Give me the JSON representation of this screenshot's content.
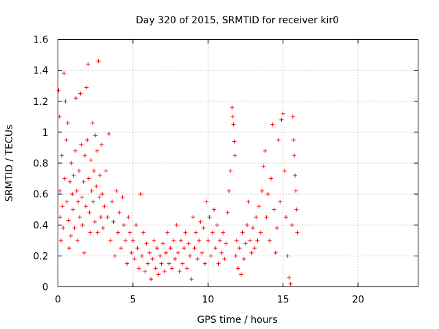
{
  "chart_data": {
    "type": "scatter",
    "title": "Day 320 of 2015, SRMTID for receiver kir0",
    "xlabel": "GPS time / hours",
    "ylabel": "SRMTID / TECUs",
    "xlim": [
      0,
      24
    ],
    "ylim": [
      0,
      1.6
    ],
    "xticks": [
      0,
      5,
      10,
      15,
      20
    ],
    "yticks": [
      0,
      0.2,
      0.4,
      0.6,
      0.8,
      1,
      1.2,
      1.4,
      1.6
    ],
    "xtick_labels": [
      "0",
      "5",
      "10",
      "15",
      "20"
    ],
    "ytick_labels": [
      "0",
      "0.2",
      "0.4",
      "0.6",
      "0.8",
      "1",
      "1.2",
      "1.4",
      "1.6"
    ],
    "grid": true,
    "marker": "+",
    "marker_color": "#ff0000",
    "series": [
      {
        "name": "SRMTID",
        "points": [
          [
            0.05,
            1.27
          ],
          [
            0.1,
            1.1
          ],
          [
            0.12,
            0.62
          ],
          [
            0.15,
            0.45
          ],
          [
            0.2,
            0.3
          ],
          [
            0.25,
            0.85
          ],
          [
            0.3,
            0.52
          ],
          [
            0.35,
            0.38
          ],
          [
            0.4,
            1.38
          ],
          [
            0.45,
            0.7
          ],
          [
            0.5,
            1.2
          ],
          [
            0.55,
            0.95
          ],
          [
            0.6,
            0.55
          ],
          [
            0.65,
            1.06
          ],
          [
            0.7,
            0.43
          ],
          [
            0.75,
            0.25
          ],
          [
            0.8,
            0.68
          ],
          [
            0.85,
            0.33
          ],
          [
            0.9,
            0.8
          ],
          [
            0.95,
            0.6
          ],
          [
            1.0,
            0.5
          ],
          [
            1.05,
            0.72
          ],
          [
            1.1,
            0.38
          ],
          [
            1.15,
            0.88
          ],
          [
            1.2,
            1.22
          ],
          [
            1.25,
            0.62
          ],
          [
            1.3,
            0.3
          ],
          [
            1.35,
            0.55
          ],
          [
            1.4,
            0.75
          ],
          [
            1.45,
            0.45
          ],
          [
            1.5,
            1.25
          ],
          [
            1.55,
            0.92
          ],
          [
            1.6,
            0.58
          ],
          [
            1.65,
            0.4
          ],
          [
            1.7,
            0.68
          ],
          [
            1.75,
            0.22
          ],
          [
            1.8,
            0.85
          ],
          [
            1.85,
            0.52
          ],
          [
            1.9,
            1.29
          ],
          [
            1.95,
            0.95
          ],
          [
            2.0,
            1.44
          ],
          [
            2.05,
            0.7
          ],
          [
            2.1,
            0.48
          ],
          [
            2.15,
            0.35
          ],
          [
            2.2,
            0.82
          ],
          [
            2.25,
            0.62
          ],
          [
            2.3,
            1.06
          ],
          [
            2.35,
            0.55
          ],
          [
            2.4,
            0.75
          ],
          [
            2.45,
            0.42
          ],
          [
            2.5,
            0.98
          ],
          [
            2.55,
            0.65
          ],
          [
            2.6,
            0.88
          ],
          [
            2.65,
            0.35
          ],
          [
            2.7,
            1.46
          ],
          [
            2.75,
            0.58
          ],
          [
            2.8,
            0.72
          ],
          [
            2.85,
            0.45
          ],
          [
            2.9,
            0.92
          ],
          [
            2.95,
            0.6
          ],
          [
            3.0,
            0.38
          ],
          [
            3.1,
            0.52
          ],
          [
            3.2,
            0.75
          ],
          [
            3.3,
            0.45
          ],
          [
            3.4,
            0.99
          ],
          [
            3.5,
            0.3
          ],
          [
            3.6,
            0.55
          ],
          [
            3.7,
            0.42
          ],
          [
            3.8,
            0.2
          ],
          [
            3.9,
            0.62
          ],
          [
            4.0,
            0.35
          ],
          [
            4.1,
            0.48
          ],
          [
            4.2,
            0.25
          ],
          [
            4.3,
            0.58
          ],
          [
            4.4,
            0.4
          ],
          [
            4.5,
            0.3
          ],
          [
            4.6,
            0.15
          ],
          [
            4.7,
            0.45
          ],
          [
            4.8,
            0.35
          ],
          [
            4.9,
            0.22
          ],
          [
            5.0,
            0.3
          ],
          [
            5.1,
            0.18
          ],
          [
            5.2,
            0.4
          ],
          [
            5.3,
            0.25
          ],
          [
            5.4,
            0.12
          ],
          [
            5.5,
            0.6
          ],
          [
            5.6,
            0.2
          ],
          [
            5.7,
            0.35
          ],
          [
            5.8,
            0.1
          ],
          [
            5.9,
            0.28
          ],
          [
            6.0,
            0.15
          ],
          [
            6.1,
            0.22
          ],
          [
            6.2,
            0.05
          ],
          [
            6.3,
            0.18
          ],
          [
            6.4,
            0.3
          ],
          [
            6.5,
            0.12
          ],
          [
            6.6,
            0.25
          ],
          [
            6.7,
            0.08
          ],
          [
            6.8,
            0.2
          ],
          [
            6.9,
            0.15
          ],
          [
            7.0,
            0.28
          ],
          [
            7.1,
            0.1
          ],
          [
            7.2,
            0.22
          ],
          [
            7.3,
            0.35
          ],
          [
            7.4,
            0.15
          ],
          [
            7.5,
            0.25
          ],
          [
            7.6,
            0.12
          ],
          [
            7.7,
            0.3
          ],
          [
            7.8,
            0.18
          ],
          [
            7.9,
            0.4
          ],
          [
            8.0,
            0.22
          ],
          [
            8.1,
            0.1
          ],
          [
            8.2,
            0.3
          ],
          [
            8.3,
            0.15
          ],
          [
            8.4,
            0.25
          ],
          [
            8.5,
            0.35
          ],
          [
            8.6,
            0.12
          ],
          [
            8.7,
            0.28
          ],
          [
            8.8,
            0.2
          ],
          [
            8.9,
            0.05
          ],
          [
            9.0,
            0.45
          ],
          [
            9.1,
            0.25
          ],
          [
            9.2,
            0.35
          ],
          [
            9.3,
            0.18
          ],
          [
            9.4,
            0.3
          ],
          [
            9.5,
            0.42
          ],
          [
            9.6,
            0.22
          ],
          [
            9.7,
            0.38
          ],
          [
            9.8,
            0.15
          ],
          [
            9.9,
            0.55
          ],
          [
            10.0,
            0.3
          ],
          [
            10.1,
            0.45
          ],
          [
            10.2,
            0.2
          ],
          [
            10.3,
            0.35
          ],
          [
            10.4,
            0.5
          ],
          [
            10.5,
            0.25
          ],
          [
            10.6,
            0.4
          ],
          [
            10.7,
            0.15
          ],
          [
            10.8,
            0.3
          ],
          [
            10.9,
            0.22
          ],
          [
            11.0,
            0.35
          ],
          [
            11.1,
            0.18
          ],
          [
            11.2,
            0.28
          ],
          [
            11.3,
            0.48
          ],
          [
            11.4,
            0.62
          ],
          [
            11.5,
            0.75
          ],
          [
            11.6,
            1.16
          ],
          [
            11.65,
            1.1
          ],
          [
            11.7,
            1.05
          ],
          [
            11.75,
            0.94
          ],
          [
            11.8,
            0.85
          ],
          [
            11.85,
            0.2
          ],
          [
            11.9,
            0.3
          ],
          [
            12.0,
            0.12
          ],
          [
            12.1,
            0.25
          ],
          [
            12.2,
            0.08
          ],
          [
            12.3,
            0.35
          ],
          [
            12.4,
            0.18
          ],
          [
            12.5,
            0.28
          ],
          [
            12.6,
            0.4
          ],
          [
            12.7,
            0.55
          ],
          [
            12.8,
            0.3
          ],
          [
            12.9,
            0.22
          ],
          [
            13.0,
            0.38
          ],
          [
            13.1,
            0.25
          ],
          [
            13.2,
            0.45
          ],
          [
            13.3,
            0.3
          ],
          [
            13.4,
            0.52
          ],
          [
            13.5,
            0.35
          ],
          [
            13.6,
            0.62
          ],
          [
            13.7,
            0.78
          ],
          [
            13.8,
            0.88
          ],
          [
            13.9,
            0.45
          ],
          [
            14.0,
            0.6
          ],
          [
            14.1,
            0.3
          ],
          [
            14.2,
            0.7
          ],
          [
            14.3,
            1.05
          ],
          [
            14.4,
            0.5
          ],
          [
            14.5,
            0.22
          ],
          [
            14.6,
            0.38
          ],
          [
            14.7,
            0.95
          ],
          [
            14.8,
            0.55
          ],
          [
            14.9,
            1.08
          ],
          [
            15.0,
            1.12
          ],
          [
            15.1,
            0.75
          ],
          [
            15.2,
            0.45
          ],
          [
            15.3,
            0.2
          ],
          [
            15.4,
            0.06
          ],
          [
            15.5,
            0.02
          ],
          [
            15.6,
            0.4
          ],
          [
            15.65,
            1.1
          ],
          [
            15.7,
            0.95
          ],
          [
            15.75,
            0.85
          ],
          [
            15.8,
            0.72
          ],
          [
            15.85,
            0.62
          ],
          [
            15.9,
            0.5
          ],
          [
            15.95,
            0.35
          ]
        ]
      }
    ]
  }
}
